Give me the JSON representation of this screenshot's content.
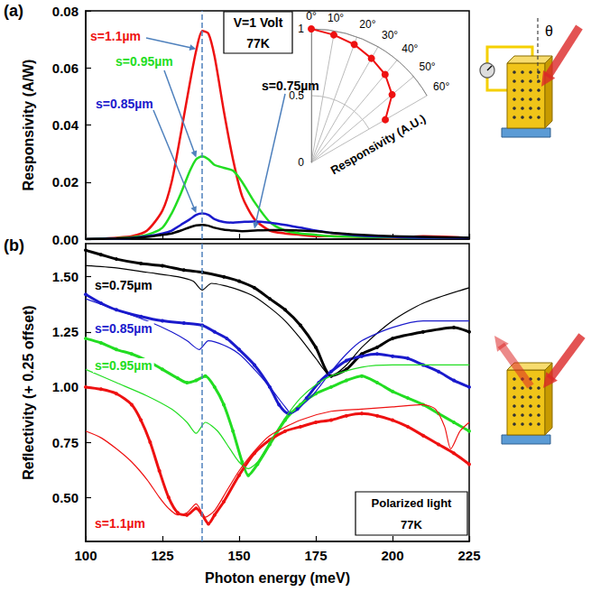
{
  "chart_data": [
    {
      "type": "line",
      "title": "(a)",
      "ylabel": "Responsivity (A/W)",
      "xlim": [
        100,
        225
      ],
      "xticks": [
        100,
        125,
        150,
        175,
        200,
        225
      ],
      "ylim": [
        0,
        0.08
      ],
      "yticks": [
        {
          "value": 0,
          "label": "0.00"
        },
        {
          "value": 0.02,
          "label": "0.02"
        },
        {
          "value": 0.04,
          "label": "0.04"
        },
        {
          "value": 0.06,
          "label": "0.06"
        },
        {
          "value": 0.08,
          "label": "0.08"
        }
      ],
      "tick_labels": "y",
      "grid": false,
      "marker": "none",
      "line_style": "solid",
      "reference_line": {
        "x": 138,
        "line_style": "dashed",
        "color": "#4f81bd"
      },
      "text_box": [
        "V=1 Volt",
        "77K"
      ],
      "schematic_label": "θ",
      "x": [
        100,
        110,
        115,
        120,
        125,
        128,
        131,
        134,
        136,
        138,
        140,
        142,
        145,
        148,
        151,
        155,
        160,
        165,
        170,
        175,
        180,
        190,
        200,
        210,
        225
      ],
      "series": [
        {
          "name": "s=1.1µm",
          "color": "#ee1111",
          "values": [
            0,
            0.0005,
            0.001,
            0.003,
            0.01,
            0.02,
            0.037,
            0.055,
            0.066,
            0.073,
            0.072,
            0.064,
            0.045,
            0.028,
            0.015,
            0.007,
            0.003,
            0.002,
            0.0015,
            0.001,
            0.001,
            0.0008,
            0.0005,
            0.001,
            0.0005
          ]
        },
        {
          "name": "s=0.95µm",
          "color": "#22dd22",
          "values": [
            0,
            0.0003,
            0.0006,
            0.0015,
            0.004,
            0.009,
            0.016,
            0.024,
            0.028,
            0.029,
            0.028,
            0.026,
            0.025,
            0.024,
            0.02,
            0.013,
            0.006,
            0.003,
            0.002,
            0.0015,
            0.001,
            0.0008,
            0.0006,
            0.0005,
            0.0005
          ]
        },
        {
          "name": "s=0.85µm",
          "color": "#1a1acc",
          "values": [
            0,
            0.0002,
            0.0004,
            0.001,
            0.002,
            0.003,
            0.005,
            0.007,
            0.0085,
            0.009,
            0.0085,
            0.007,
            0.006,
            0.0058,
            0.006,
            0.0062,
            0.0058,
            0.005,
            0.004,
            0.003,
            0.0022,
            0.0012,
            0.0008,
            0.0005,
            0.0004
          ]
        },
        {
          "name": "s=0.75µm",
          "color": "#000000",
          "values": [
            0,
            0.0002,
            0.0004,
            0.0008,
            0.0015,
            0.002,
            0.003,
            0.0042,
            0.0048,
            0.005,
            0.0047,
            0.004,
            0.0033,
            0.003,
            0.0028,
            0.003,
            0.0032,
            0.0032,
            0.003,
            0.0028,
            0.0022,
            0.0015,
            0.001,
            0.0008,
            0.0005
          ]
        }
      ]
    },
    {
      "type": "polar",
      "color": "#ee1111",
      "marker": "circle",
      "axis_label": "Responsivity (A.U.)",
      "angles": [
        0,
        10,
        20,
        30,
        40,
        50,
        60
      ],
      "values": [
        1.0,
        0.97,
        0.94,
        0.9,
        0.86,
        0.79,
        0.64
      ],
      "alim": [
        0,
        60
      ],
      "aticks": [
        {
          "value": 0,
          "label": "0°"
        },
        {
          "value": 10,
          "label": "10°"
        },
        {
          "value": 20,
          "label": "20°"
        },
        {
          "value": 30,
          "label": "30°"
        },
        {
          "value": 40,
          "label": "40°"
        },
        {
          "value": 50,
          "label": "50°"
        },
        {
          "value": 60,
          "label": "60°"
        }
      ],
      "rlim": [
        0,
        1
      ],
      "rticks": [
        0,
        0.5,
        1
      ]
    },
    {
      "type": "line",
      "title": "(b)",
      "xlabel": "Photon energy (meV)",
      "ylabel": "Reflectivity (+ 0.25 offset)",
      "xlim": [
        100,
        225
      ],
      "xticks": [
        100,
        125,
        150,
        175,
        200,
        225
      ],
      "ylim": [
        0.3,
        1.65
      ],
      "yticks": [
        {
          "value": 0.5,
          "label": "0.50"
        },
        {
          "value": 0.75,
          "label": "0.75"
        },
        {
          "value": 1,
          "label": "1.00"
        },
        {
          "value": 1.25,
          "label": "1.25"
        },
        {
          "value": 1.5,
          "label": "1.50"
        }
      ],
      "grid": false,
      "reference_line": {
        "x": 138,
        "line_style": "dashed",
        "color": "#4f81bd"
      },
      "text_box": [
        "Polarized light",
        "77K"
      ],
      "series": [
        {
          "name": "s=0.75µm",
          "color": "#000000",
          "marker": "circle",
          "line_style": "solid",
          "x": [
            100,
            105,
            110,
            118,
            125,
            132,
            138,
            145,
            150,
            155,
            160,
            165,
            170,
            175,
            180,
            185,
            190,
            195,
            200,
            210,
            220,
            225
          ],
          "values": [
            1.62,
            1.6,
            1.58,
            1.56,
            1.55,
            1.53,
            1.52,
            1.5,
            1.48,
            1.45,
            1.4,
            1.35,
            1.28,
            1.18,
            1.05,
            1.08,
            1.15,
            1.18,
            1.22,
            1.25,
            1.27,
            1.25
          ]
        },
        {
          "name": "s=0.75µm",
          "color": "#000000",
          "marker": "none",
          "line_style": "solid",
          "x": [
            100,
            110,
            120,
            130,
            135,
            138,
            141,
            145,
            150,
            155,
            160,
            165,
            170,
            175,
            180,
            185,
            190,
            200,
            210,
            225
          ],
          "values": [
            1.55,
            1.54,
            1.52,
            1.5,
            1.48,
            1.44,
            1.47,
            1.46,
            1.44,
            1.41,
            1.36,
            1.3,
            1.22,
            1.13,
            1.05,
            1.1,
            1.18,
            1.3,
            1.38,
            1.45
          ]
        },
        {
          "name": "s=0.85µm",
          "color": "#1a1acc",
          "marker": "circle",
          "line_style": "solid",
          "x": [
            100,
            105,
            110,
            118,
            125,
            132,
            138,
            142,
            146,
            150,
            155,
            160,
            163,
            166,
            169,
            172,
            176,
            180,
            185,
            190,
            195,
            200,
            205,
            210,
            215,
            220,
            225
          ],
          "values": [
            1.42,
            1.38,
            1.35,
            1.32,
            1.3,
            1.29,
            1.28,
            1.25,
            1.22,
            1.17,
            1.1,
            1.0,
            0.92,
            0.88,
            0.9,
            0.95,
            1.02,
            1.07,
            1.12,
            1.14,
            1.15,
            1.14,
            1.13,
            1.1,
            1.07,
            1.03,
            1.0
          ]
        },
        {
          "name": "s=0.85µm",
          "color": "#1a1acc",
          "marker": "none",
          "line_style": "solid",
          "x": [
            100,
            110,
            120,
            128,
            133,
            137,
            140,
            145,
            150,
            155,
            160,
            165,
            167,
            170,
            175,
            180,
            185,
            190,
            200,
            210,
            225
          ],
          "values": [
            1.4,
            1.35,
            1.3,
            1.25,
            1.21,
            1.17,
            1.21,
            1.19,
            1.15,
            1.08,
            1.0,
            0.91,
            0.88,
            0.91,
            0.98,
            1.07,
            1.15,
            1.21,
            1.27,
            1.3,
            1.3
          ]
        },
        {
          "name": "s=0.95µm",
          "color": "#22dd22",
          "marker": "circle",
          "line_style": "solid",
          "x": [
            100,
            105,
            110,
            115,
            120,
            125,
            130,
            133,
            136,
            139,
            142,
            145,
            148,
            151,
            153,
            156,
            160,
            165,
            170,
            175,
            180,
            185,
            190,
            195,
            200,
            205,
            210,
            215,
            220,
            225
          ],
          "values": [
            1.22,
            1.2,
            1.17,
            1.15,
            1.12,
            1.08,
            1.04,
            1.02,
            1.03,
            1.05,
            1.0,
            0.92,
            0.8,
            0.66,
            0.6,
            0.65,
            0.74,
            0.85,
            0.92,
            0.97,
            1.0,
            1.03,
            1.05,
            1.02,
            0.98,
            0.95,
            0.92,
            0.88,
            0.84,
            0.8
          ]
        },
        {
          "name": "s=0.95µm",
          "color": "#22dd22",
          "marker": "none",
          "line_style": "solid",
          "x": [
            100,
            110,
            120,
            128,
            133,
            136,
            139,
            143,
            147,
            150,
            153,
            156,
            160,
            165,
            170,
            175,
            180,
            190,
            200,
            210,
            225
          ],
          "values": [
            1.08,
            1.02,
            0.96,
            0.9,
            0.84,
            0.79,
            0.84,
            0.8,
            0.72,
            0.66,
            0.63,
            0.66,
            0.75,
            0.86,
            0.95,
            1.01,
            1.05,
            1.09,
            1.1,
            1.1,
            1.1
          ]
        },
        {
          "name": "s=1.1µm",
          "color": "#ee1111",
          "marker": "circle",
          "line_style": "solid",
          "x": [
            100,
            105,
            110,
            115,
            118,
            121,
            124,
            127,
            130,
            133,
            136,
            138,
            140,
            142,
            145,
            150,
            155,
            160,
            165,
            170,
            175,
            180,
            185,
            190,
            195,
            200,
            205,
            210,
            215,
            220,
            225
          ],
          "values": [
            1.0,
            0.99,
            0.97,
            0.92,
            0.85,
            0.75,
            0.62,
            0.5,
            0.43,
            0.42,
            0.45,
            0.42,
            0.38,
            0.42,
            0.48,
            0.6,
            0.7,
            0.76,
            0.8,
            0.82,
            0.84,
            0.85,
            0.87,
            0.88,
            0.87,
            0.85,
            0.82,
            0.78,
            0.74,
            0.7,
            0.65
          ]
        },
        {
          "name": "s=1.1µm",
          "color": "#ee1111",
          "marker": "none",
          "line_style": "solid",
          "x": [
            100,
            105,
            110,
            115,
            120,
            124,
            127,
            130,
            133,
            136,
            139,
            142,
            146,
            150,
            155,
            160,
            170,
            180,
            190,
            200,
            210,
            214,
            217,
            219,
            222,
            225
          ],
          "values": [
            0.8,
            0.77,
            0.72,
            0.66,
            0.58,
            0.5,
            0.45,
            0.42,
            0.43,
            0.47,
            0.41,
            0.44,
            0.53,
            0.62,
            0.71,
            0.78,
            0.85,
            0.89,
            0.9,
            0.91,
            0.92,
            0.9,
            0.82,
            0.72,
            0.8,
            0.84
          ]
        }
      ]
    }
  ]
}
